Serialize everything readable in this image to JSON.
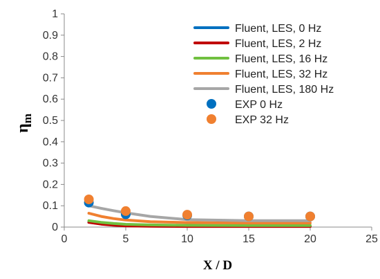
{
  "chart_data": {
    "type": "line",
    "title": "",
    "xlabel": "X / D",
    "ylabel_main": "η",
    "ylabel_sub": "m",
    "xlim": [
      0,
      25
    ],
    "ylim": [
      0,
      1
    ],
    "x_ticks": [
      "0",
      "5",
      "10",
      "15",
      "20",
      "25"
    ],
    "y_ticks": [
      "0",
      "0.1",
      "0.2",
      "0.3",
      "0.4",
      "0.5",
      "0.6",
      "0.7",
      "0.8",
      "0.9",
      "1"
    ],
    "grid": false,
    "legend_position": "top-right",
    "series": [
      {
        "name": "Fluent, LES, 0 Hz",
        "kind": "line",
        "color": "#0070C0",
        "x": [
          2,
          3,
          4,
          5,
          7,
          10,
          15,
          20
        ],
        "y": [
          0.023,
          0.015,
          0.01,
          0.007,
          0.005,
          0.004,
          0.004,
          0.004
        ]
      },
      {
        "name": "Fluent, LES, 2 Hz",
        "kind": "line",
        "color": "#C00000",
        "x": [
          2,
          3,
          4,
          5,
          7,
          10,
          15,
          20
        ],
        "y": [
          0.022,
          0.014,
          0.009,
          0.006,
          0.004,
          0.003,
          0.003,
          0.003
        ]
      },
      {
        "name": "Fluent, LES, 16 Hz",
        "kind": "line",
        "color": "#70C040",
        "x": [
          2,
          3,
          4,
          5,
          7,
          10,
          15,
          20
        ],
        "y": [
          0.03,
          0.022,
          0.017,
          0.013,
          0.01,
          0.008,
          0.007,
          0.007
        ]
      },
      {
        "name": "Fluent, LES, 32 Hz",
        "kind": "line",
        "color": "#F08030",
        "x": [
          2,
          3,
          4,
          5,
          7,
          10,
          15,
          20
        ],
        "y": [
          0.065,
          0.05,
          0.04,
          0.033,
          0.025,
          0.021,
          0.019,
          0.019
        ]
      },
      {
        "name": "Fluent, LES, 180 Hz",
        "kind": "line",
        "color": "#A6A6A6",
        "x": [
          2,
          3,
          4,
          5,
          7,
          10,
          15,
          20
        ],
        "y": [
          0.1,
          0.088,
          0.077,
          0.067,
          0.05,
          0.035,
          0.03,
          0.03
        ]
      },
      {
        "name": "EXP 0 Hz",
        "kind": "scatter",
        "color": "#0070C0",
        "x": [
          2,
          5,
          10,
          15,
          20
        ],
        "y": [
          0.115,
          0.06,
          0.055,
          0.05,
          0.05
        ]
      },
      {
        "name": "EXP 32 Hz",
        "kind": "scatter",
        "color": "#F08030",
        "x": [
          2,
          5,
          10,
          15,
          20
        ],
        "y": [
          0.13,
          0.075,
          0.058,
          0.05,
          0.05
        ]
      }
    ]
  }
}
